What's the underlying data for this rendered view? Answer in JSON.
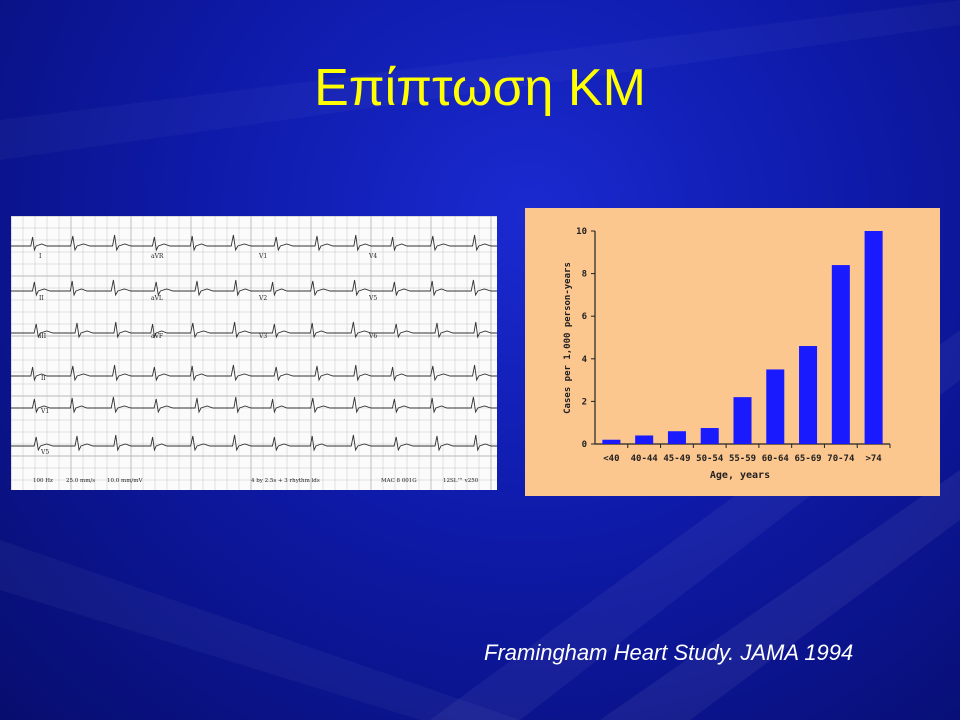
{
  "slide": {
    "title": "Επίπτωση ΚΜ",
    "citation": "Framingham Heart Study. JAMA 1994"
  },
  "ecg": {
    "lead_labels": [
      "I",
      "aVR",
      "V1",
      "V4",
      "II",
      "aVL",
      "V2",
      "V5",
      "III",
      "aVF",
      "V3",
      "V6",
      "II",
      "V1",
      "V5"
    ],
    "footer": [
      "100 Hz",
      "25.0 mm/s",
      "10.0 mm/mV",
      "4 by 2.5s + 3 rhythm lds",
      "MAC 8 001G",
      "12SL™ v250"
    ]
  },
  "chart_data": {
    "type": "bar",
    "categories": [
      "<40",
      "40-44",
      "45-49",
      "50-54",
      "55-59",
      "60-64",
      "65-69",
      "70-74",
      ">74"
    ],
    "values": [
      0.2,
      0.4,
      0.6,
      0.75,
      2.2,
      3.5,
      4.6,
      8.4,
      10.0
    ],
    "xlabel": "Age, years",
    "ylabel": "Cases per 1,000 person-years",
    "ylim": [
      0,
      10
    ],
    "yticks": [
      0,
      2,
      4,
      6,
      8,
      10
    ],
    "bar_color": "#1a1aff"
  }
}
